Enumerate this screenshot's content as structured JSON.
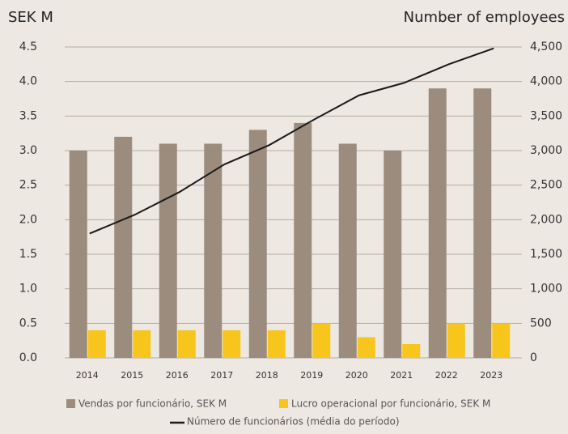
{
  "chart_data": {
    "type": "bar",
    "y_label": "SEK M",
    "y2_label": "Number of employees",
    "categories": [
      "2014",
      "2015",
      "2016",
      "2017",
      "2018",
      "2019",
      "2020",
      "2021",
      "2022",
      "2023"
    ],
    "series": [
      {
        "name": "Vendas por funcionário, SEK M",
        "color": "#9b8c7e",
        "values": [
          3.0,
          3.2,
          3.1,
          3.1,
          3.3,
          3.4,
          3.1,
          3.0,
          3.9,
          3.9
        ]
      },
      {
        "name": "Lucro operacional por funcionário, SEK M",
        "color": "#f7c51c",
        "values": [
          0.4,
          0.4,
          0.4,
          0.4,
          0.4,
          0.5,
          0.3,
          0.2,
          0.5,
          0.5
        ]
      },
      {
        "name": "Número de funcionários (média do período)",
        "type": "line",
        "axis": "y2",
        "color": "#1a1a1a",
        "values": [
          1800,
          2070,
          2400,
          2800,
          3080,
          3450,
          3800,
          3980,
          4250,
          4480
        ]
      }
    ],
    "ylim": [
      0,
      4.5
    ],
    "yticks": [
      {
        "value": 0,
        "label": "0.0"
      },
      0.5,
      {
        "value": 1,
        "label": "1.0"
      },
      1.5,
      {
        "value": 2,
        "label": "2.0"
      },
      2.5,
      {
        "value": 3,
        "label": "3.0"
      },
      3.5,
      {
        "value": 4,
        "label": "4.0"
      },
      4.5
    ],
    "y2lim": [
      0,
      4500
    ],
    "y2ticks": [
      0,
      500,
      {
        "value": 1000,
        "label": "1,000"
      },
      {
        "value": 1500,
        "label": "1,500"
      },
      {
        "value": 2000,
        "label": "2,000"
      },
      {
        "value": 2500,
        "label": "2,500"
      },
      {
        "value": 3000,
        "label": "3,000"
      },
      {
        "value": 3500,
        "label": "3,500"
      },
      {
        "value": 4000,
        "label": "4,000"
      },
      {
        "value": 4500,
        "label": "4,500"
      }
    ],
    "grid": true
  }
}
